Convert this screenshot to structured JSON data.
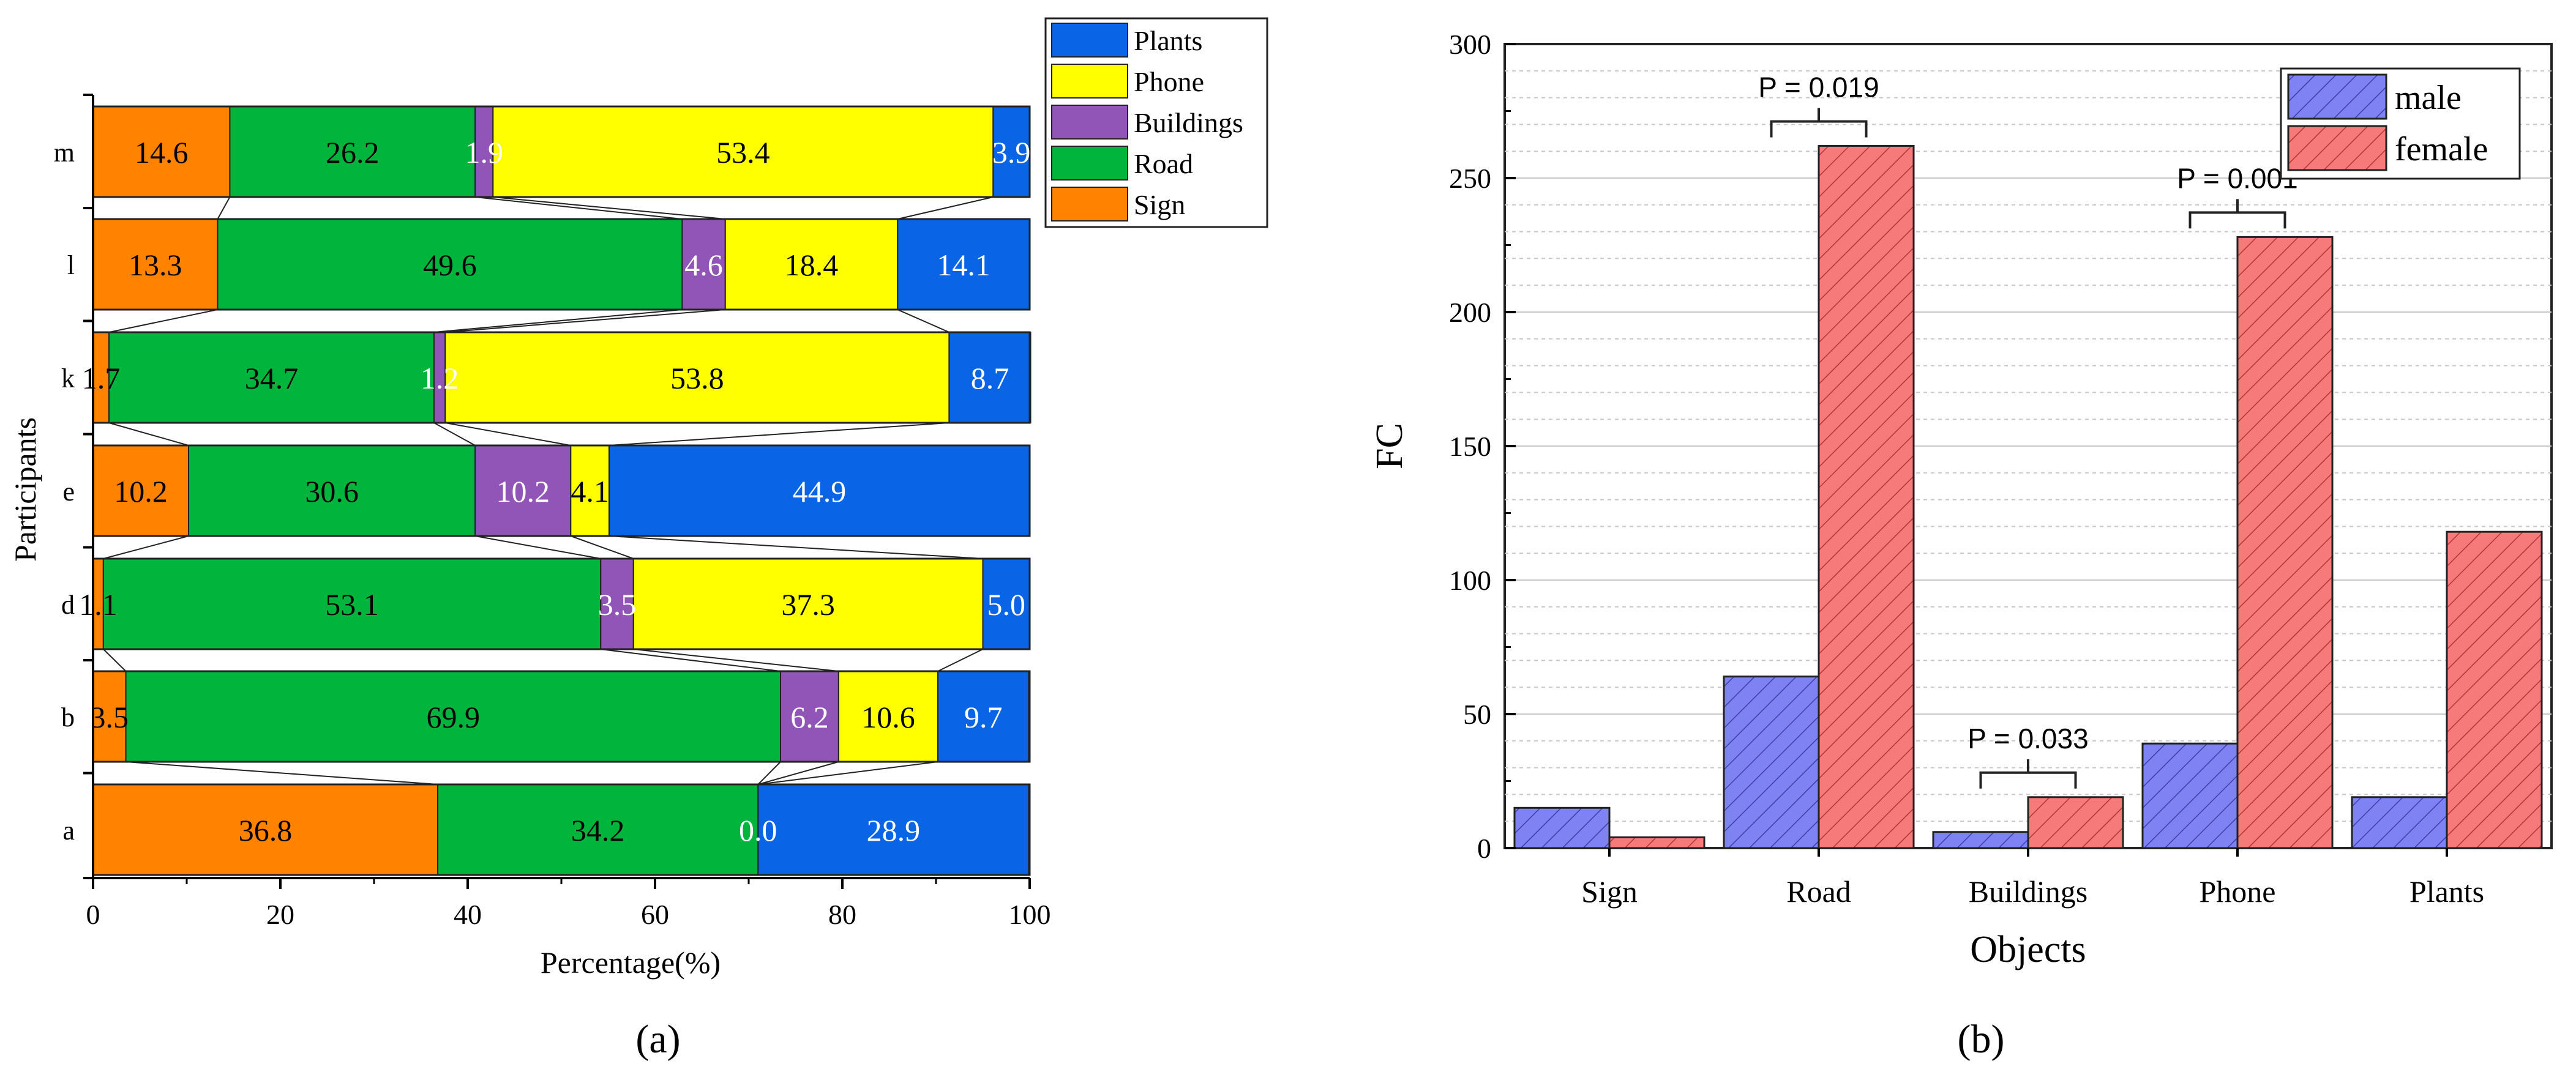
{
  "colors": {
    "Plants": "#0a64e6",
    "Phone": "#ffff00",
    "Buildings": "#9155b8",
    "Road": "#00b43c",
    "Sign": "#ff8200",
    "male": "#7e82f2",
    "female": "#f77a7a"
  },
  "chart_data": [
    {
      "type": "bar",
      "orientation": "horizontal",
      "stacked": true,
      "panel_label": "(a)",
      "xlabel": "Percentage(%)",
      "ylabel": "Participants",
      "xlim": [
        0,
        100
      ],
      "xticks": [
        0,
        20,
        40,
        60,
        80,
        100
      ],
      "categories": [
        "m",
        "l",
        "k",
        "e",
        "d",
        "b",
        "a"
      ],
      "series": [
        {
          "name": "Sign",
          "values": [
            14.6,
            13.3,
            1.7,
            10.2,
            1.1,
            3.5,
            36.8
          ],
          "labels": [
            "14.6",
            "13.3",
            "1.7",
            "10.2",
            "1.1",
            "3.5",
            "36.8"
          ]
        },
        {
          "name": "Road",
          "values": [
            26.2,
            49.6,
            34.7,
            30.6,
            53.1,
            69.9,
            34.2
          ],
          "labels": [
            "26.2",
            "49.6",
            "34.7",
            "30.6",
            "53.1",
            "69.9",
            "34.2"
          ]
        },
        {
          "name": "Buildings",
          "values": [
            1.9,
            4.6,
            1.2,
            10.2,
            3.5,
            6.2,
            0.0
          ],
          "labels": [
            "1.9",
            "4.6",
            "1.2",
            "10.2",
            "3.5",
            "6.2",
            "0.0"
          ]
        },
        {
          "name": "Phone",
          "values": [
            53.4,
            18.4,
            53.8,
            4.1,
            37.3,
            10.6,
            0.0
          ],
          "labels": [
            "53.4",
            "18.4",
            "53.8",
            "4.1",
            "37.3",
            "10.6",
            ""
          ]
        },
        {
          "name": "Plants",
          "values": [
            3.9,
            14.1,
            8.7,
            44.9,
            5.0,
            9.7,
            28.9
          ],
          "labels": [
            "3.9",
            "14.1",
            "8.7",
            "44.9",
            "5.0",
            "9.7",
            "28.9"
          ]
        }
      ],
      "legend": {
        "placement": "top-right",
        "entries": [
          "Plants",
          "Phone",
          "Buildings",
          "Road",
          "Sign"
        ]
      },
      "connector_lines": true
    },
    {
      "type": "bar",
      "orientation": "vertical",
      "grouped": true,
      "hatched": true,
      "panel_label": "(b)",
      "xlabel": "Objects",
      "ylabel": "FC",
      "ylim": [
        0,
        300
      ],
      "yticks": [
        0,
        50,
        100,
        150,
        200,
        250,
        300
      ],
      "grid": true,
      "categories": [
        "Sign",
        "Road",
        "Buildings",
        "Phone",
        "Plants"
      ],
      "series": [
        {
          "name": "male",
          "values": [
            15,
            64,
            6,
            39,
            19
          ]
        },
        {
          "name": "female",
          "values": [
            4,
            262,
            19,
            228,
            118
          ]
        }
      ],
      "legend": {
        "placement": "top-right",
        "entries": [
          "male",
          "female"
        ]
      },
      "annotations": [
        {
          "category": "Road",
          "text": "P = 0.019"
        },
        {
          "category": "Buildings",
          "text": "P = 0.033"
        },
        {
          "category": "Phone",
          "text": "P = 0.001"
        }
      ]
    }
  ]
}
